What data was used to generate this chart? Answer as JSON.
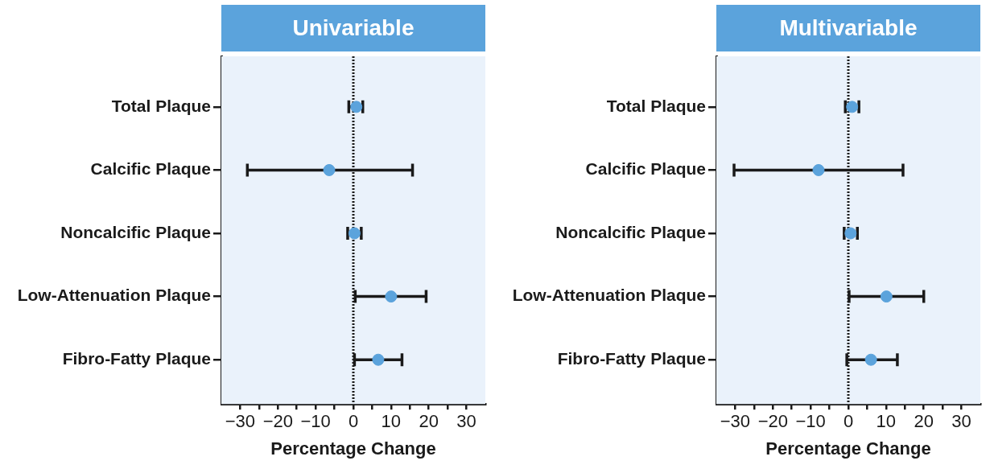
{
  "chart_data": [
    {
      "type": "scatter",
      "orientation": "horizontal",
      "title": "Univariable",
      "xlabel": "Percentage Change",
      "categories": [
        "Total Plaque",
        "Calcific Plaque",
        "Noncalcific Plaque",
        "Low-Attenuation Plaque",
        "Fibro-Fatty Plaque"
      ],
      "series": [
        {
          "color": "#5ba3dc",
          "values": [
            0.8,
            -6.4,
            0.3,
            10.0,
            6.6
          ],
          "errors": [
            [
              -1.2,
              2.5
            ],
            [
              -28.1,
              15.7
            ],
            [
              -1.5,
              2.1
            ],
            [
              0.5,
              19.3
            ],
            [
              0.3,
              12.9
            ]
          ]
        }
      ],
      "xlim": [
        -35,
        35
      ],
      "xticks": [
        -30,
        {
          "value": -25,
          "label": null
        },
        -20,
        {
          "value": -15,
          "label": null
        },
        -10,
        {
          "value": -5,
          "label": null
        },
        0,
        {
          "value": 5,
          "label": null
        },
        10,
        {
          "value": 15,
          "label": null
        },
        20,
        {
          "value": 25,
          "label": null
        },
        30
      ],
      "ref_lines": [
        {
          "axis": "x",
          "value": 0,
          "line_style": "dotted",
          "color": "#1a1a1a"
        }
      ],
      "legend": false,
      "marker": "circle"
    },
    {
      "type": "scatter",
      "orientation": "horizontal",
      "title": "Multivariable",
      "xlabel": "Percentage Change",
      "categories": [
        "Total Plaque",
        "Calcific Plaque",
        "Noncalcific Plaque",
        "Low-Attenuation Plaque",
        "Fibro-Fatty Plaque"
      ],
      "series": [
        {
          "color": "#5ba3dc",
          "values": [
            1.0,
            -7.9,
            0.6,
            10.1,
            6.0
          ],
          "errors": [
            [
              -0.8,
              2.8
            ],
            [
              -30.3,
              14.5
            ],
            [
              -1.1,
              2.4
            ],
            [
              0.2,
              20.0
            ],
            [
              -0.4,
              13.0
            ]
          ]
        }
      ],
      "xlim": [
        -35,
        35
      ],
      "xticks": [
        -30,
        {
          "value": -25,
          "label": null
        },
        -20,
        {
          "value": -15,
          "label": null
        },
        -10,
        {
          "value": -5,
          "label": null
        },
        0,
        {
          "value": 5,
          "label": null
        },
        10,
        {
          "value": 15,
          "label": null
        },
        20,
        {
          "value": 25,
          "label": null
        },
        30
      ],
      "ref_lines": [
        {
          "axis": "x",
          "value": 0,
          "line_style": "dotted",
          "color": "#1a1a1a"
        }
      ],
      "legend": false,
      "marker": "circle"
    }
  ]
}
